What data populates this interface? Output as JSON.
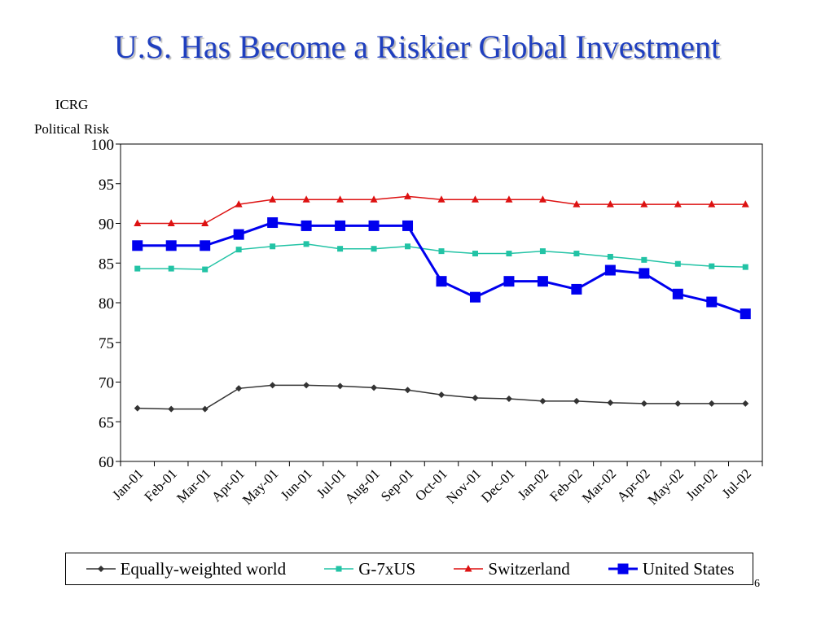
{
  "slide": {
    "title": "U.S. Has Become a Riskier Global Investment",
    "page_number": "6"
  },
  "chart_data": {
    "type": "line",
    "title": "",
    "ylabel_lines": [
      "ICRG",
      "Political Risk"
    ],
    "xlabel": "",
    "ylim": [
      60,
      100
    ],
    "yticks": [
      60,
      65,
      70,
      75,
      80,
      85,
      90,
      95,
      100
    ],
    "grid": false,
    "legend_position": "bottom",
    "categories": [
      "Jan-01",
      "Feb-01",
      "Mar-01",
      "Apr-01",
      "May-01",
      "Jun-01",
      "Jul-01",
      "Aug-01",
      "Sep-01",
      "Oct-01",
      "Nov-01",
      "Dec-01",
      "Jan-02",
      "Feb-02",
      "Mar-02",
      "Apr-02",
      "May-02",
      "Jun-02",
      "Jul-02"
    ],
    "series": [
      {
        "name": "Equally-weighted world",
        "color": "#333333",
        "marker": "diamond",
        "values": [
          66.7,
          66.6,
          66.6,
          69.2,
          69.6,
          69.6,
          69.5,
          69.3,
          69.0,
          68.4,
          68.0,
          67.9,
          67.6,
          67.6,
          67.4,
          67.3,
          67.3,
          67.3,
          67.3
        ]
      },
      {
        "name": "G-7xUS",
        "color": "#22c3a5",
        "marker": "square",
        "values": [
          84.3,
          84.3,
          84.2,
          86.7,
          87.1,
          87.4,
          86.8,
          86.8,
          87.1,
          86.5,
          86.2,
          86.2,
          86.5,
          86.2,
          85.8,
          85.4,
          84.9,
          84.6,
          84.5
        ]
      },
      {
        "name": "Switzerland",
        "color": "#dd1111",
        "marker": "triangle",
        "values": [
          90.0,
          90.0,
          90.0,
          92.4,
          93.0,
          93.0,
          93.0,
          93.0,
          93.4,
          93.0,
          93.0,
          93.0,
          93.0,
          92.4,
          92.4,
          92.4,
          92.4,
          92.4,
          92.4
        ]
      },
      {
        "name": "United States",
        "color": "#0000ee",
        "marker": "square-large",
        "values": [
          87.2,
          87.2,
          87.2,
          88.6,
          90.1,
          89.7,
          89.7,
          89.7,
          89.7,
          82.7,
          80.7,
          82.7,
          82.7,
          81.7,
          84.1,
          83.7,
          81.1,
          80.1,
          78.6
        ]
      }
    ]
  }
}
